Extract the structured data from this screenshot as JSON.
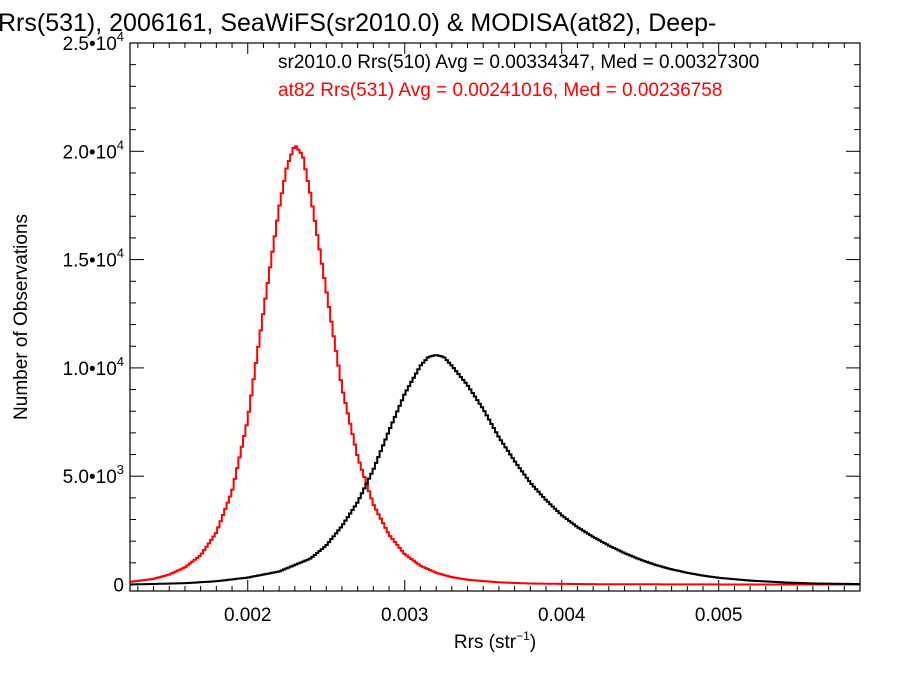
{
  "chart_data": {
    "type": "line",
    "title": "Rrs(531), 2006161, SeaWiFS(sr2010.0) & MODISA(at82), Deep-",
    "xlabel": {
      "main": "Rrs (str",
      "sup": "−1",
      "tail": ")"
    },
    "ylabel": "Number of Observations",
    "xlim": [
      0.00125,
      0.0059
    ],
    "ylim": [
      -300,
      25000
    ],
    "x_ticks": [
      {
        "value": 0.002,
        "label": "0.002"
      },
      {
        "value": 0.003,
        "label": "0.003"
      },
      {
        "value": 0.004,
        "label": "0.004"
      },
      {
        "value": 0.005,
        "label": "0.005"
      }
    ],
    "y_ticks": [
      {
        "value": 0,
        "label": "0",
        "exp": ""
      },
      {
        "value": 5000,
        "label": "5.0•10",
        "exp": "3"
      },
      {
        "value": 10000,
        "label": "1.0•10",
        "exp": "4"
      },
      {
        "value": 15000,
        "label": "1.5•10",
        "exp": "4"
      },
      {
        "value": 20000,
        "label": "2.0•10",
        "exp": "4"
      },
      {
        "value": 25000,
        "label": "2.5•10",
        "exp": "4"
      }
    ],
    "legend": {
      "placement": "top-right",
      "entries": [
        {
          "text": "sr2010.0 Rrs(510) Avg = 0.00334347, Med = 0.00327300",
          "color": "#000000"
        },
        {
          "text": "at82 Rrs(531) Avg = 0.00241016, Med = 0.00236758",
          "color": "#ff0000"
        }
      ]
    },
    "series": [
      {
        "name": "at82 Rrs(531)",
        "color": "#ff0000",
        "points": [
          [
            0.00125,
            120
          ],
          [
            0.0014,
            260
          ],
          [
            0.0015,
            460
          ],
          [
            0.0016,
            790
          ],
          [
            0.0017,
            1350
          ],
          [
            0.0018,
            2400
          ],
          [
            0.0019,
            4300
          ],
          [
            0.002,
            7600
          ],
          [
            0.0021,
            12600
          ],
          [
            0.0022,
            17400
          ],
          [
            0.00225,
            19300
          ],
          [
            0.0023,
            20300
          ],
          [
            0.00235,
            19800
          ],
          [
            0.0024,
            18000
          ],
          [
            0.0025,
            13600
          ],
          [
            0.0026,
            9100
          ],
          [
            0.0027,
            5900
          ],
          [
            0.0028,
            3700
          ],
          [
            0.0029,
            2300
          ],
          [
            0.003,
            1400
          ],
          [
            0.0031,
            870
          ],
          [
            0.0032,
            540
          ],
          [
            0.0033,
            340
          ],
          [
            0.0034,
            220
          ],
          [
            0.0036,
            100
          ],
          [
            0.0038,
            45
          ],
          [
            0.0042,
            15
          ],
          [
            0.005,
            3
          ],
          [
            0.0059,
            0
          ]
        ]
      },
      {
        "name": "sr2010.0 Rrs(510)",
        "color": "#000000",
        "points": [
          [
            0.00125,
            0
          ],
          [
            0.0016,
            60
          ],
          [
            0.0018,
            150
          ],
          [
            0.002,
            320
          ],
          [
            0.0022,
            600
          ],
          [
            0.0024,
            1200
          ],
          [
            0.0025,
            1800
          ],
          [
            0.0026,
            2700
          ],
          [
            0.0027,
            3800
          ],
          [
            0.0028,
            5300
          ],
          [
            0.0029,
            7100
          ],
          [
            0.003,
            8800
          ],
          [
            0.0031,
            10100
          ],
          [
            0.00315,
            10500
          ],
          [
            0.0032,
            10600
          ],
          [
            0.00325,
            10500
          ],
          [
            0.0033,
            10100
          ],
          [
            0.0034,
            9200
          ],
          [
            0.0035,
            8100
          ],
          [
            0.0036,
            6800
          ],
          [
            0.0037,
            5700
          ],
          [
            0.0038,
            4700
          ],
          [
            0.0039,
            3900
          ],
          [
            0.004,
            3200
          ],
          [
            0.0041,
            2650
          ],
          [
            0.0042,
            2200
          ],
          [
            0.0043,
            1800
          ],
          [
            0.0044,
            1450
          ],
          [
            0.0045,
            1150
          ],
          [
            0.0046,
            900
          ],
          [
            0.0047,
            700
          ],
          [
            0.0048,
            540
          ],
          [
            0.0049,
            410
          ],
          [
            0.005,
            310
          ],
          [
            0.0052,
            180
          ],
          [
            0.0054,
            100
          ],
          [
            0.0056,
            50
          ],
          [
            0.0059,
            20
          ]
        ]
      }
    ]
  }
}
